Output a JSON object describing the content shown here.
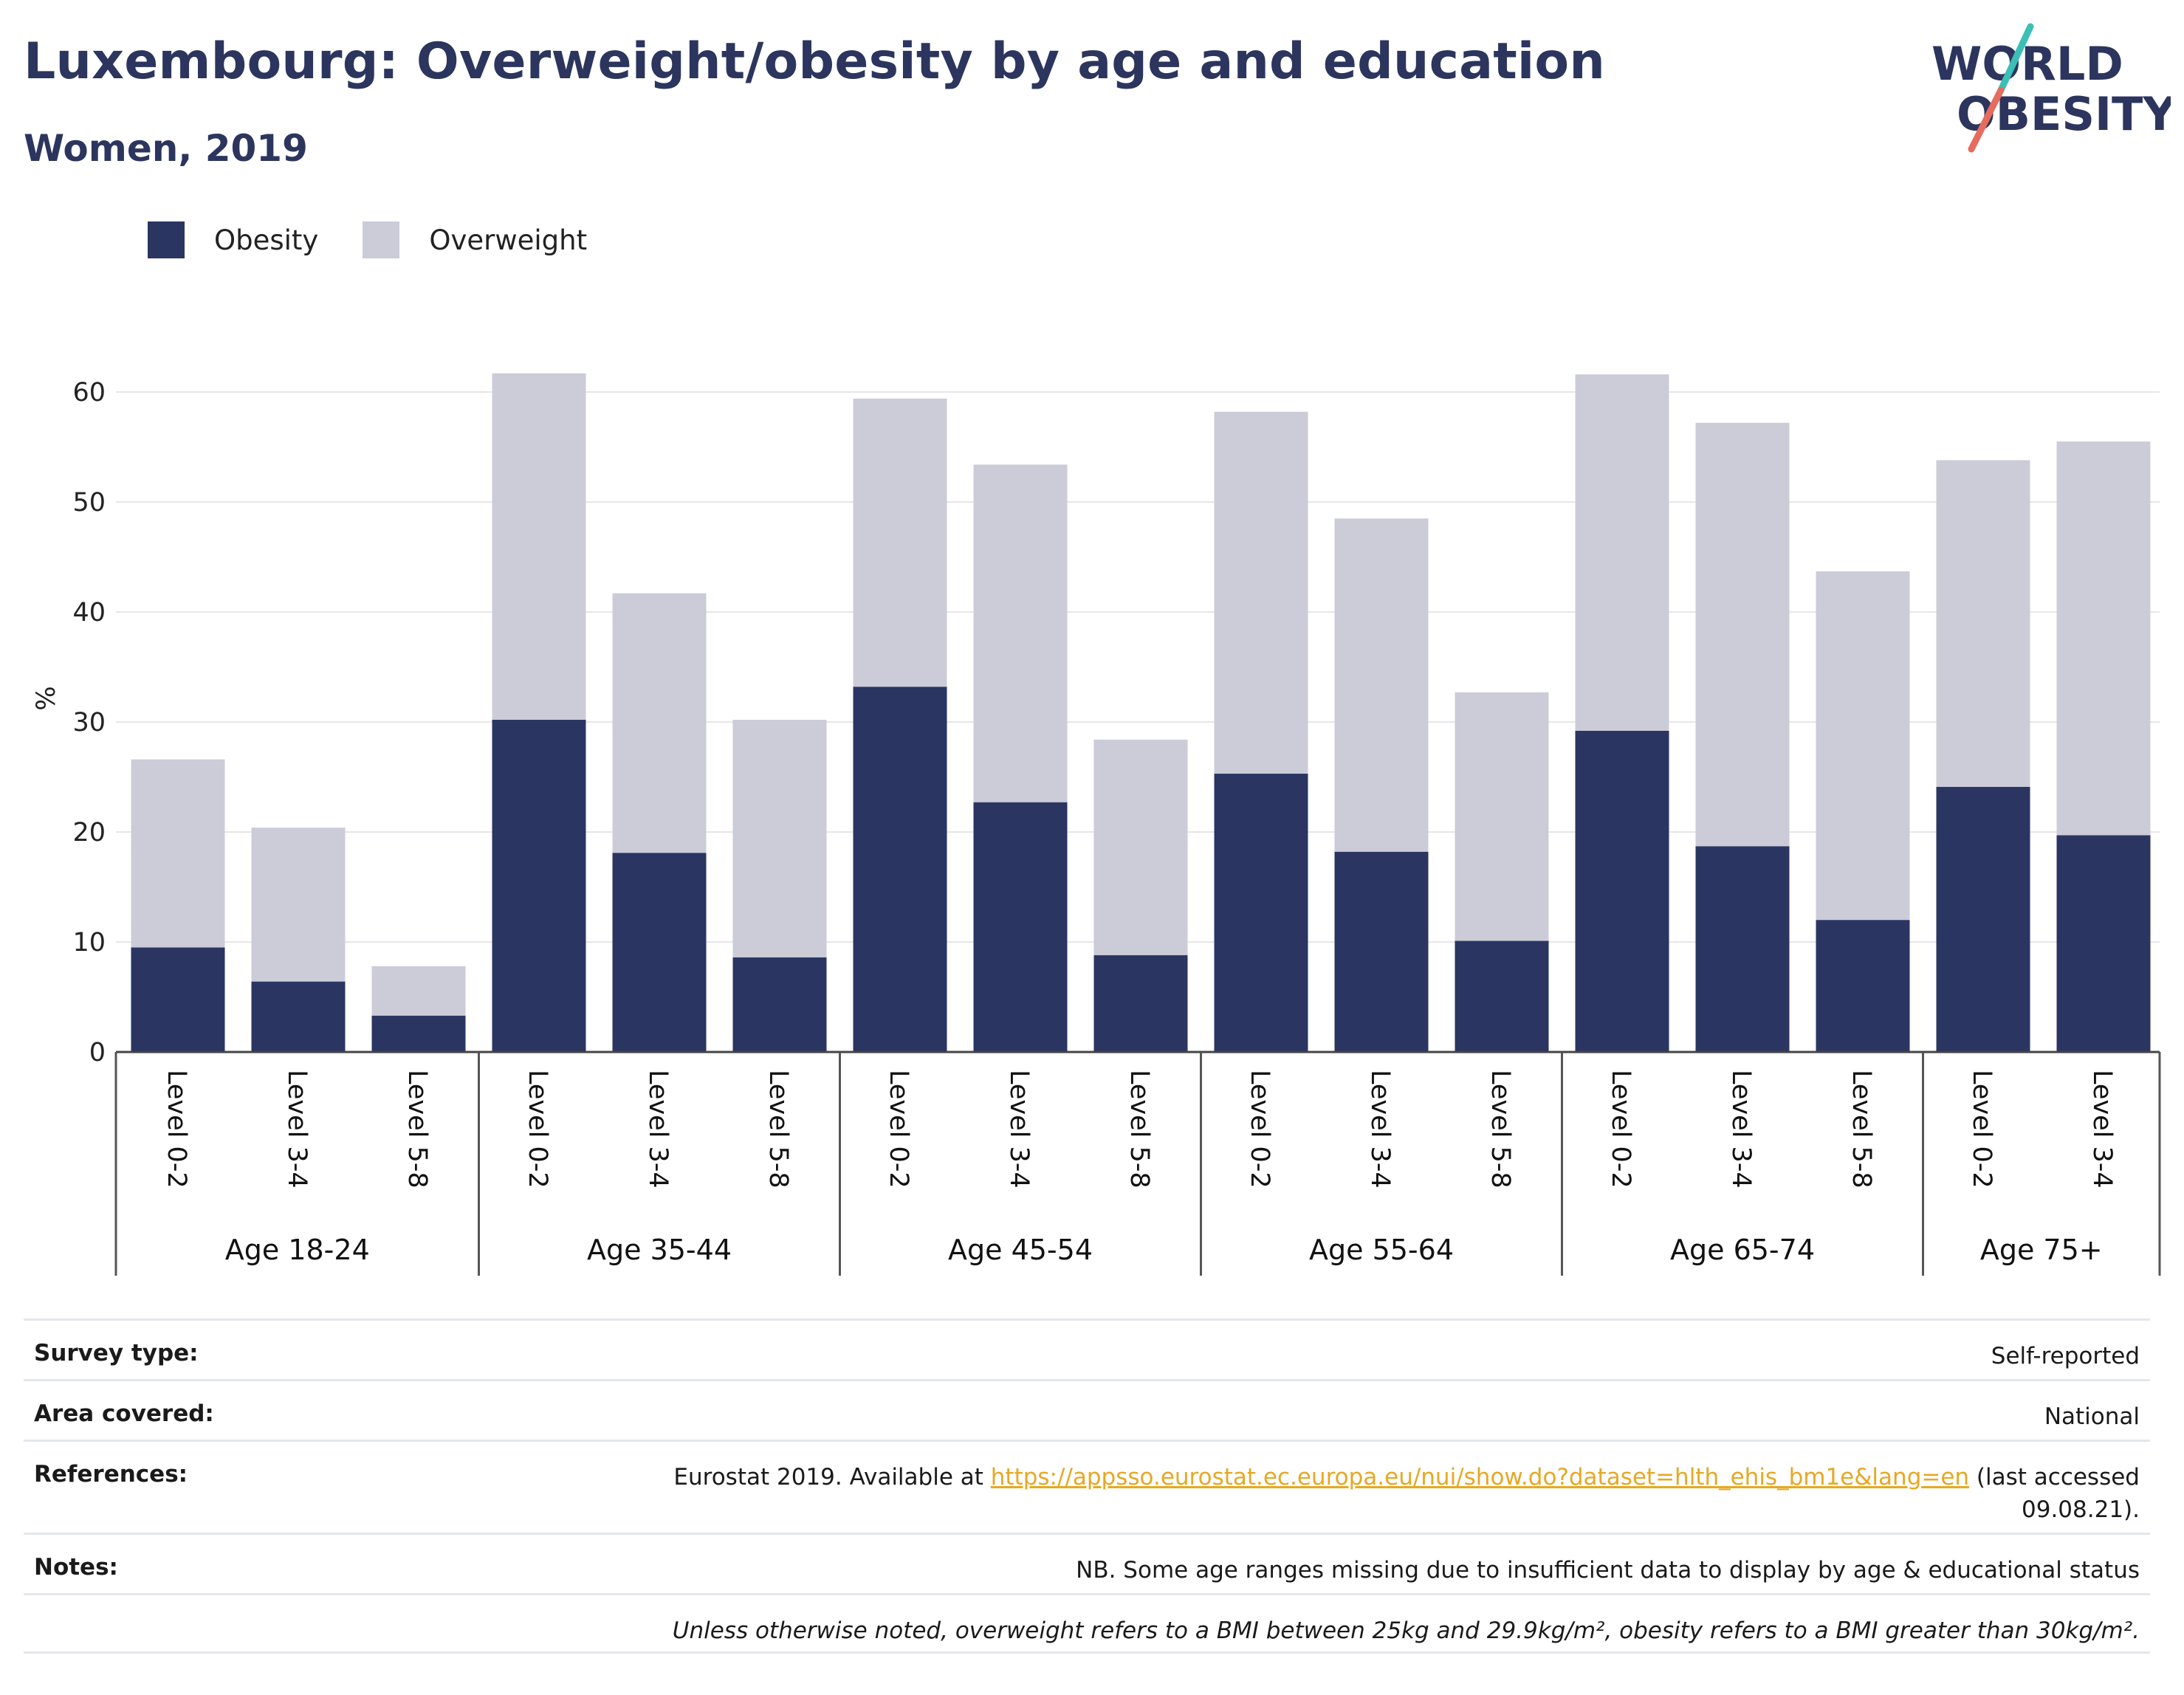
{
  "title": "Luxembourg: Overweight/obesity by age and education",
  "subtitle": "Women, 2019",
  "logo": {
    "line1": "WORLD",
    "line2": "OBESITY"
  },
  "colors": {
    "obesity": "#2b3562",
    "overweight": "#cbccd8",
    "title": "#2c355e",
    "link": "#e7a823",
    "logo_slash_top": "#3bbfb6",
    "logo_slash_bottom": "#e56d5e"
  },
  "legend": [
    {
      "label": "Obesity",
      "color": "#2b3562"
    },
    {
      "label": "Overweight",
      "color": "#cbccd8"
    }
  ],
  "chart_data": {
    "type": "bar",
    "stacked": true,
    "ylabel": "%",
    "ylim": [
      0,
      65
    ],
    "yticks": [
      0,
      10,
      20,
      30,
      40,
      50,
      60
    ],
    "grid": true,
    "legend_position": "top-left",
    "groups": [
      {
        "name": "Age 18-24",
        "categories": [
          "Level 0-2",
          "Level 3-4",
          "Level 5-8"
        ],
        "obesity": [
          9.5,
          6.4,
          3.3
        ],
        "total": [
          26.6,
          20.4,
          7.8
        ]
      },
      {
        "name": "Age 35-44",
        "categories": [
          "Level 0-2",
          "Level 3-4",
          "Level 5-8"
        ],
        "obesity": [
          30.2,
          18.1,
          8.6
        ],
        "total": [
          61.7,
          41.7,
          30.2
        ]
      },
      {
        "name": "Age 45-54",
        "categories": [
          "Level 0-2",
          "Level 3-4",
          "Level 5-8"
        ],
        "obesity": [
          33.2,
          22.7,
          8.8
        ],
        "total": [
          59.4,
          53.4,
          28.4
        ]
      },
      {
        "name": "Age 55-64",
        "categories": [
          "Level 0-2",
          "Level 3-4",
          "Level 5-8"
        ],
        "obesity": [
          25.3,
          18.2,
          10.1
        ],
        "total": [
          58.2,
          48.5,
          32.7
        ]
      },
      {
        "name": "Age 65-74",
        "categories": [
          "Level 0-2",
          "Level 3-4",
          "Level 5-8"
        ],
        "obesity": [
          29.2,
          18.7,
          12.0
        ],
        "total": [
          61.6,
          57.2,
          43.7
        ]
      },
      {
        "name": "Age 75+",
        "categories": [
          "Level 0-2",
          "Level 3-4"
        ],
        "obesity": [
          24.1,
          19.7
        ],
        "total": [
          53.8,
          55.5
        ]
      }
    ],
    "series": [
      {
        "name": "Obesity"
      },
      {
        "name": "Overweight"
      }
    ]
  },
  "info": {
    "survey_type": {
      "label": "Survey type:",
      "value": "Self-reported"
    },
    "area_covered": {
      "label": "Area covered:",
      "value": "National"
    },
    "references": {
      "label": "References:",
      "prefix": "Eurostat 2019. Available at ",
      "link": "https://appsso.eurostat.ec.europa.eu/nui/show.do?dataset=hlth_ehis_bm1e&lang=en",
      "suffix": " (last accessed 09.08.21)."
    },
    "notes": {
      "label": "Notes:",
      "value": "NB. Some age ranges missing due to insufficient data to display by age & educational status"
    },
    "definition": "Unless otherwise noted, overweight refers to a BMI between 25kg and 29.9kg/m², obesity refers to a BMI greater than 30kg/m²."
  }
}
